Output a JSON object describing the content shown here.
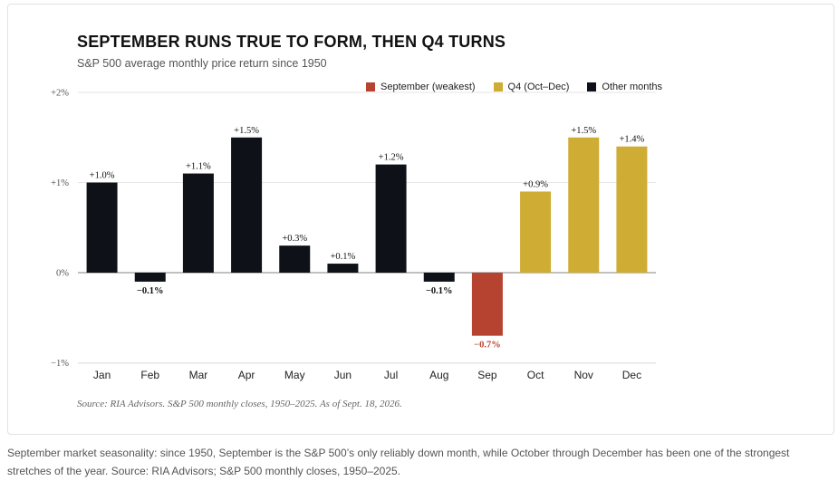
{
  "title": "SEPTEMBER RUNS TRUE TO FORM, THEN Q4 TURNS",
  "subtitle": "S&P 500 average monthly price return since 1950",
  "legend": [
    {
      "label": "September (weakest)",
      "color": "#b5432f"
    },
    {
      "label": "Q4 (Oct–Dec)",
      "color": "#cfac33"
    },
    {
      "label": "Other months",
      "color": "#0e1117"
    }
  ],
  "source": "Source: RIA Advisors. S&P 500 monthly closes, 1950–2025. As of Sept. 18, 2026.",
  "caption": "September market seasonality: since 1950, September is the S&P 500’s only reliably down month, while October through December has been one of the strongest stretches of the year. Source: RIA Advisors; S&P 500 monthly closes, 1950–2025.",
  "chart_data": {
    "type": "bar",
    "title": "SEPTEMBER RUNS TRUE TO FORM, THEN Q4 TURNS",
    "subtitle": "S&P 500 average monthly price return since 1950",
    "categories": [
      "Jan",
      "Feb",
      "Mar",
      "Apr",
      "May",
      "Jun",
      "Jul",
      "Aug",
      "Sep",
      "Oct",
      "Nov",
      "Dec"
    ],
    "values": [
      1.0,
      -0.1,
      1.1,
      1.5,
      0.3,
      0.1,
      1.2,
      -0.1,
      -0.7,
      0.9,
      1.5,
      1.4
    ],
    "data_labels": [
      "+1.0%",
      "−0.1%",
      "+1.1%",
      "+1.5%",
      "+0.3%",
      "+0.1%",
      "+1.2%",
      "−0.1%",
      "−0.7%",
      "+0.9%",
      "+1.5%",
      "+1.4%"
    ],
    "groups": [
      "Other months",
      "Other months",
      "Other months",
      "Other months",
      "Other months",
      "Other months",
      "Other months",
      "Other months",
      "September (weakest)",
      "Q4 (Oct–Dec)",
      "Q4 (Oct–Dec)",
      "Q4 (Oct–Dec)"
    ],
    "group_colors": {
      "September (weakest)": "#b5432f",
      "Q4 (Oct–Dec)": "#cfac33",
      "Other months": "#0e1117"
    },
    "label_color_negative": {
      "Sep": "#b5432f"
    },
    "ylim": [
      -1,
      2
    ],
    "yticks": [
      -1,
      0,
      1,
      2
    ],
    "ytick_labels": [
      "−1%",
      "0%",
      "+1%",
      "+2%"
    ],
    "xlabel": "",
    "ylabel": "",
    "grid": true,
    "legend_position": "top-right"
  }
}
